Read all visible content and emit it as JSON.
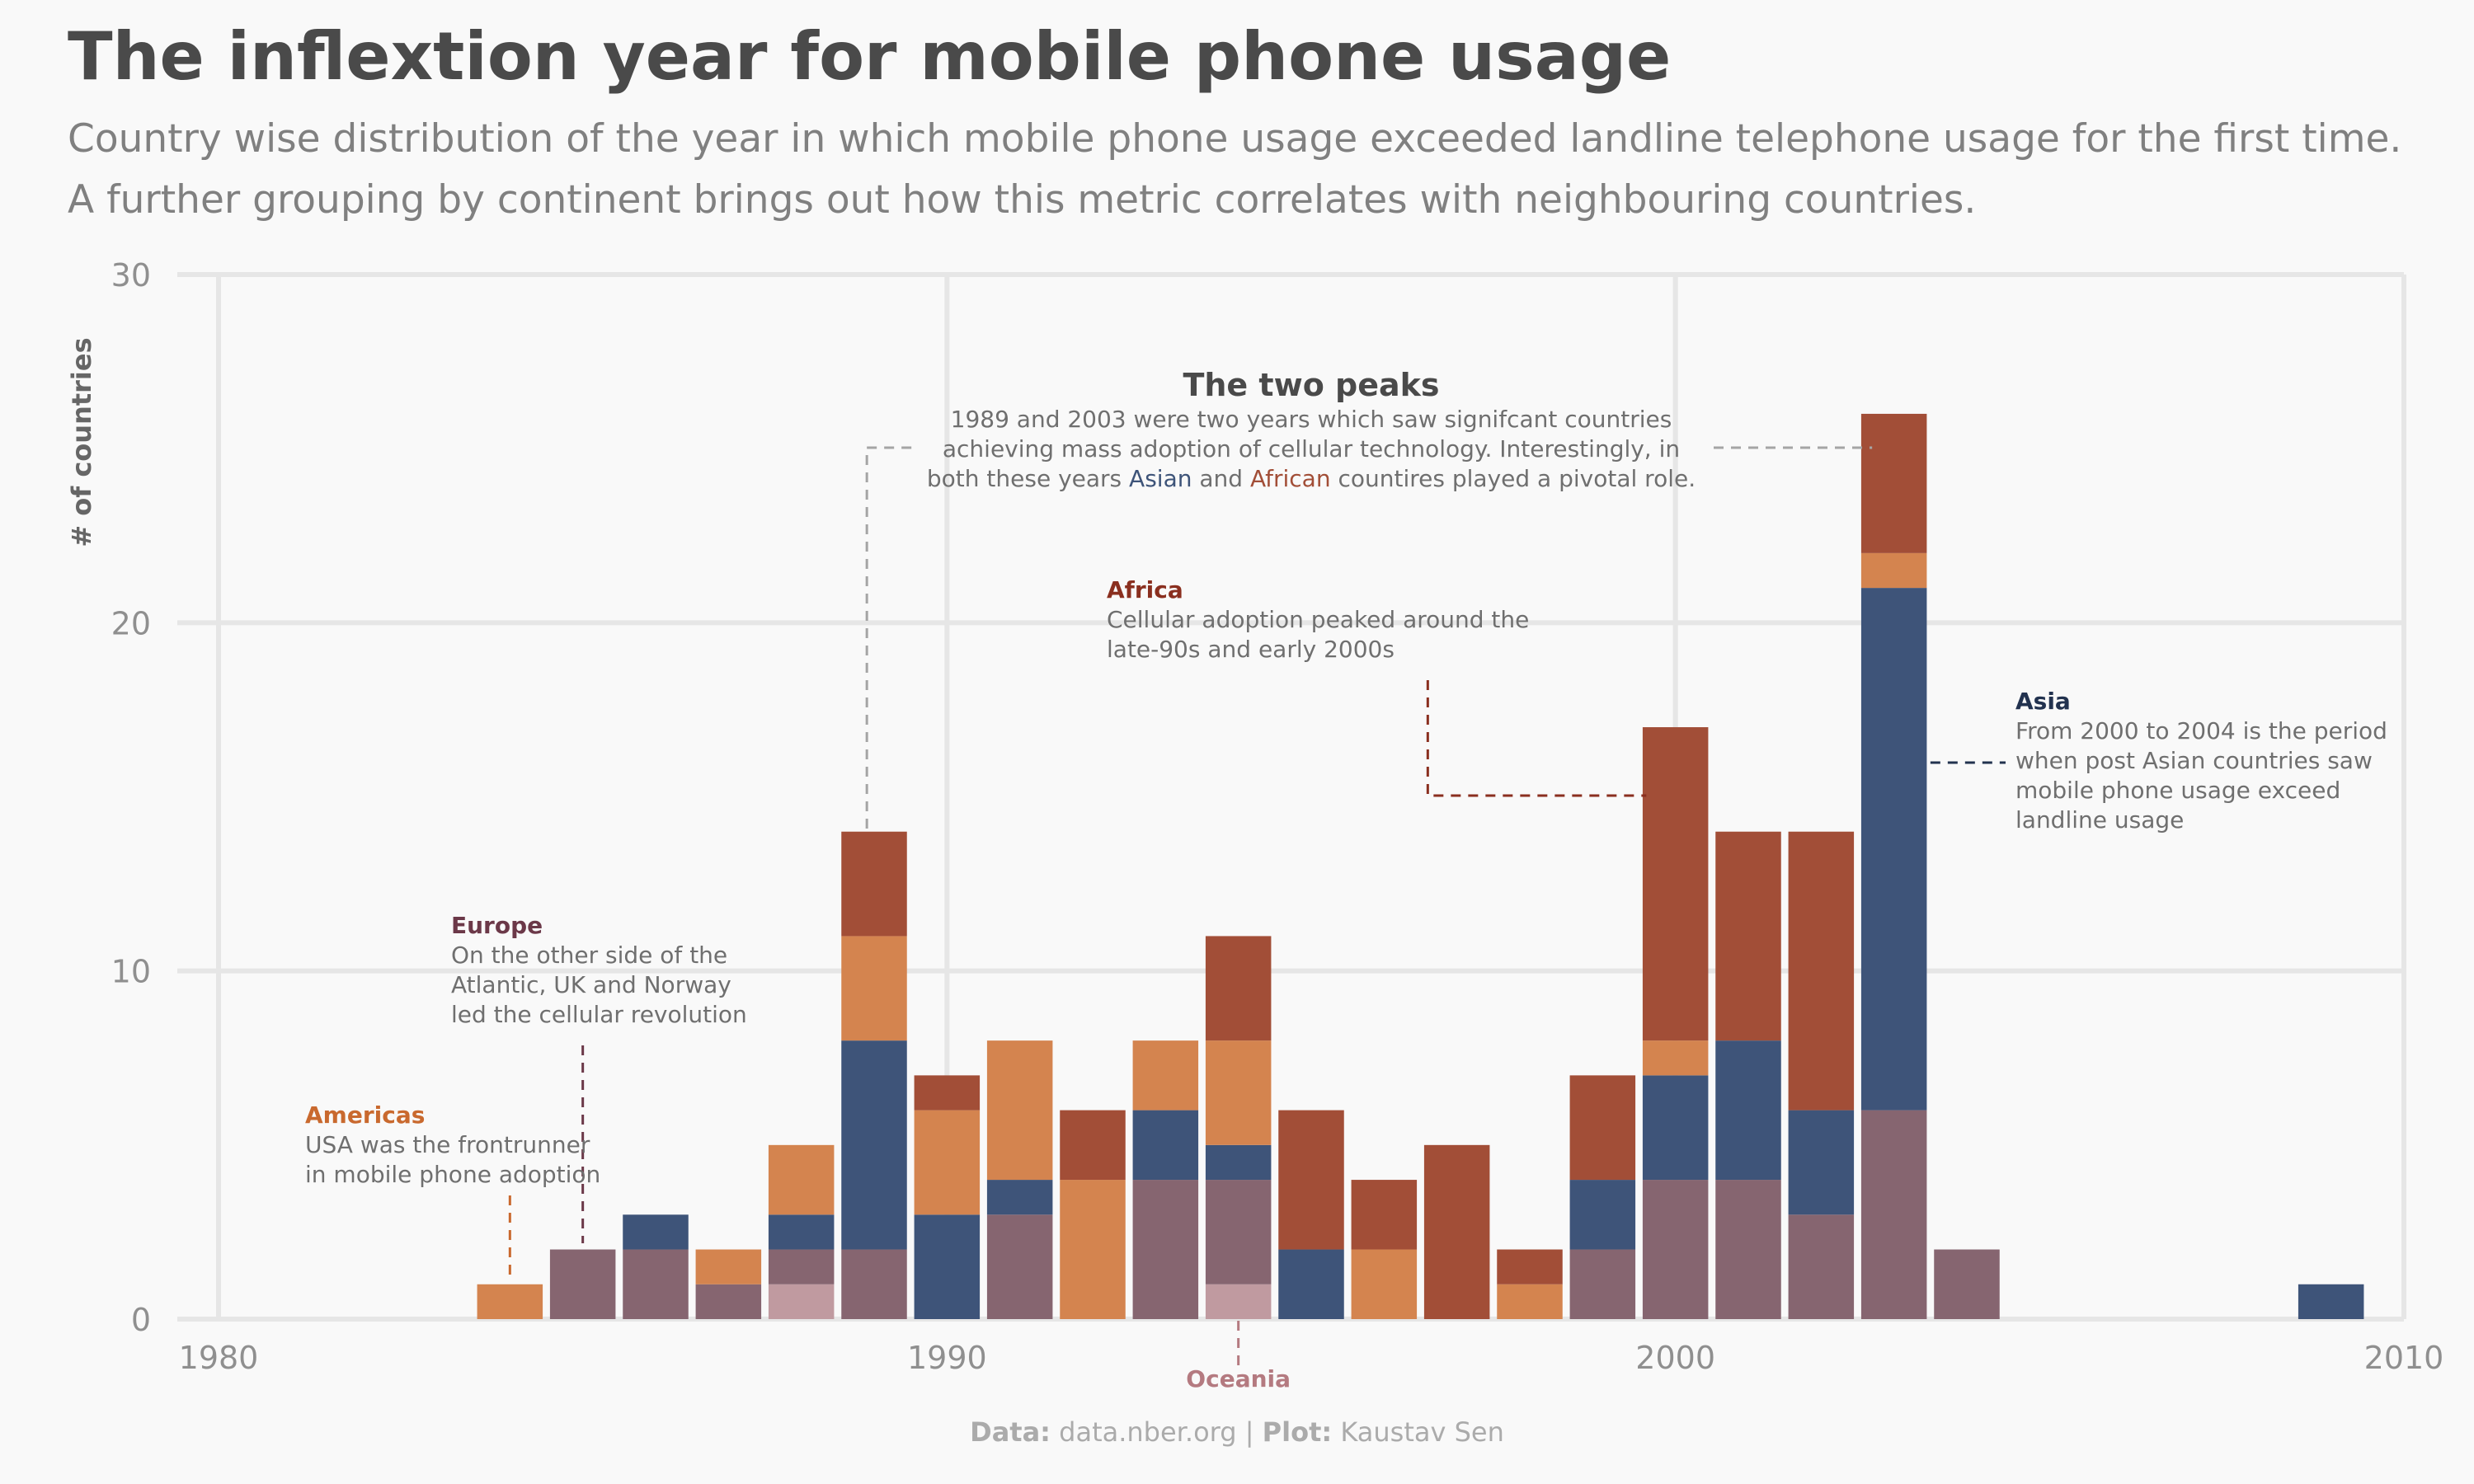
{
  "title": "The inflextion year for mobile phone usage",
  "subtitle_lines": [
    "Country wise distribution of the year in which mobile phone usage exceeded landline telephone usage for the first time.",
    "A further grouping by continent brings out how this metric correlates with neighbouring countries."
  ],
  "caption": {
    "data_label": "Data:",
    "data_value": "data.nber.org",
    "sep": "|",
    "plot_label": "Plot:",
    "plot_value": "Kaustav Sen"
  },
  "colors": {
    "Oceania": "#c09aa0",
    "Europe": "#866570",
    "Asia": "#3e5479",
    "Americas": "#d4844f",
    "Africa": "#a24e37"
  },
  "chart_data": {
    "type": "bar",
    "stacked": true,
    "stack_order": [
      "Oceania",
      "Europe",
      "Asia",
      "Americas",
      "Africa"
    ],
    "xlim": [
      1980,
      2010
    ],
    "ylim": [
      0,
      30
    ],
    "xticks": [
      1980,
      1990,
      2000,
      2010
    ],
    "yticks": [
      0,
      10,
      20,
      30
    ],
    "ylabel": "# of countries",
    "grid": true,
    "years": [
      1984,
      1985,
      1986,
      1987,
      1988,
      1989,
      1990,
      1991,
      1992,
      1993,
      1994,
      1995,
      1996,
      1997,
      1998,
      1999,
      2000,
      2001,
      2002,
      2003,
      2004,
      2009
    ],
    "series": [
      {
        "name": "Oceania",
        "values": [
          0,
          0,
          0,
          0,
          1,
          0,
          0,
          0,
          0,
          0,
          1,
          0,
          0,
          0,
          0,
          0,
          0,
          0,
          0,
          0,
          0,
          0
        ]
      },
      {
        "name": "Europe",
        "values": [
          0,
          2,
          2,
          1,
          1,
          2,
          0,
          3,
          0,
          4,
          3,
          0,
          0,
          0,
          0,
          2,
          4,
          4,
          3,
          6,
          2,
          0
        ]
      },
      {
        "name": "Asia",
        "values": [
          0,
          0,
          1,
          0,
          1,
          6,
          3,
          1,
          0,
          2,
          1,
          2,
          0,
          0,
          0,
          2,
          3,
          4,
          3,
          15,
          0,
          1
        ]
      },
      {
        "name": "Americas",
        "values": [
          1,
          0,
          0,
          1,
          2,
          3,
          3,
          4,
          4,
          2,
          3,
          0,
          2,
          0,
          1,
          0,
          1,
          0,
          0,
          1,
          0,
          0
        ]
      },
      {
        "name": "Africa",
        "values": [
          0,
          0,
          0,
          0,
          0,
          3,
          1,
          0,
          2,
          0,
          3,
          4,
          2,
          5,
          1,
          3,
          9,
          6,
          8,
          4,
          0,
          0
        ]
      }
    ],
    "annotations": {
      "peaks": {
        "title": "The two peaks",
        "lines": [
          [
            "1989 and 2003 were two years which saw signifcant countries"
          ],
          [
            "achieving mass adoption of cellular technology. Interestingly, in"
          ],
          [
            "both these years ",
            "Asian",
            " and ",
            "African",
            " countires played a pivotal role."
          ]
        ]
      },
      "africa": {
        "title": "Africa",
        "lines": [
          "Cellular adoption peaked around the",
          "late-90s and early 2000s"
        ]
      },
      "asia": {
        "title": "Asia",
        "lines": [
          "From 2000 to 2004 is the period",
          "when post Asian countries saw",
          "mobile phone usage exceed",
          "landline usage"
        ]
      },
      "europe": {
        "title": "Europe",
        "lines": [
          "On the other side of the",
          "Atlantic, UK and Norway",
          "led the cellular revolution"
        ]
      },
      "americas": {
        "title": "Americas",
        "lines": [
          "USA was the frontrunner",
          "in mobile phone adoption"
        ]
      },
      "oceania": {
        "title": "Oceania"
      }
    }
  }
}
